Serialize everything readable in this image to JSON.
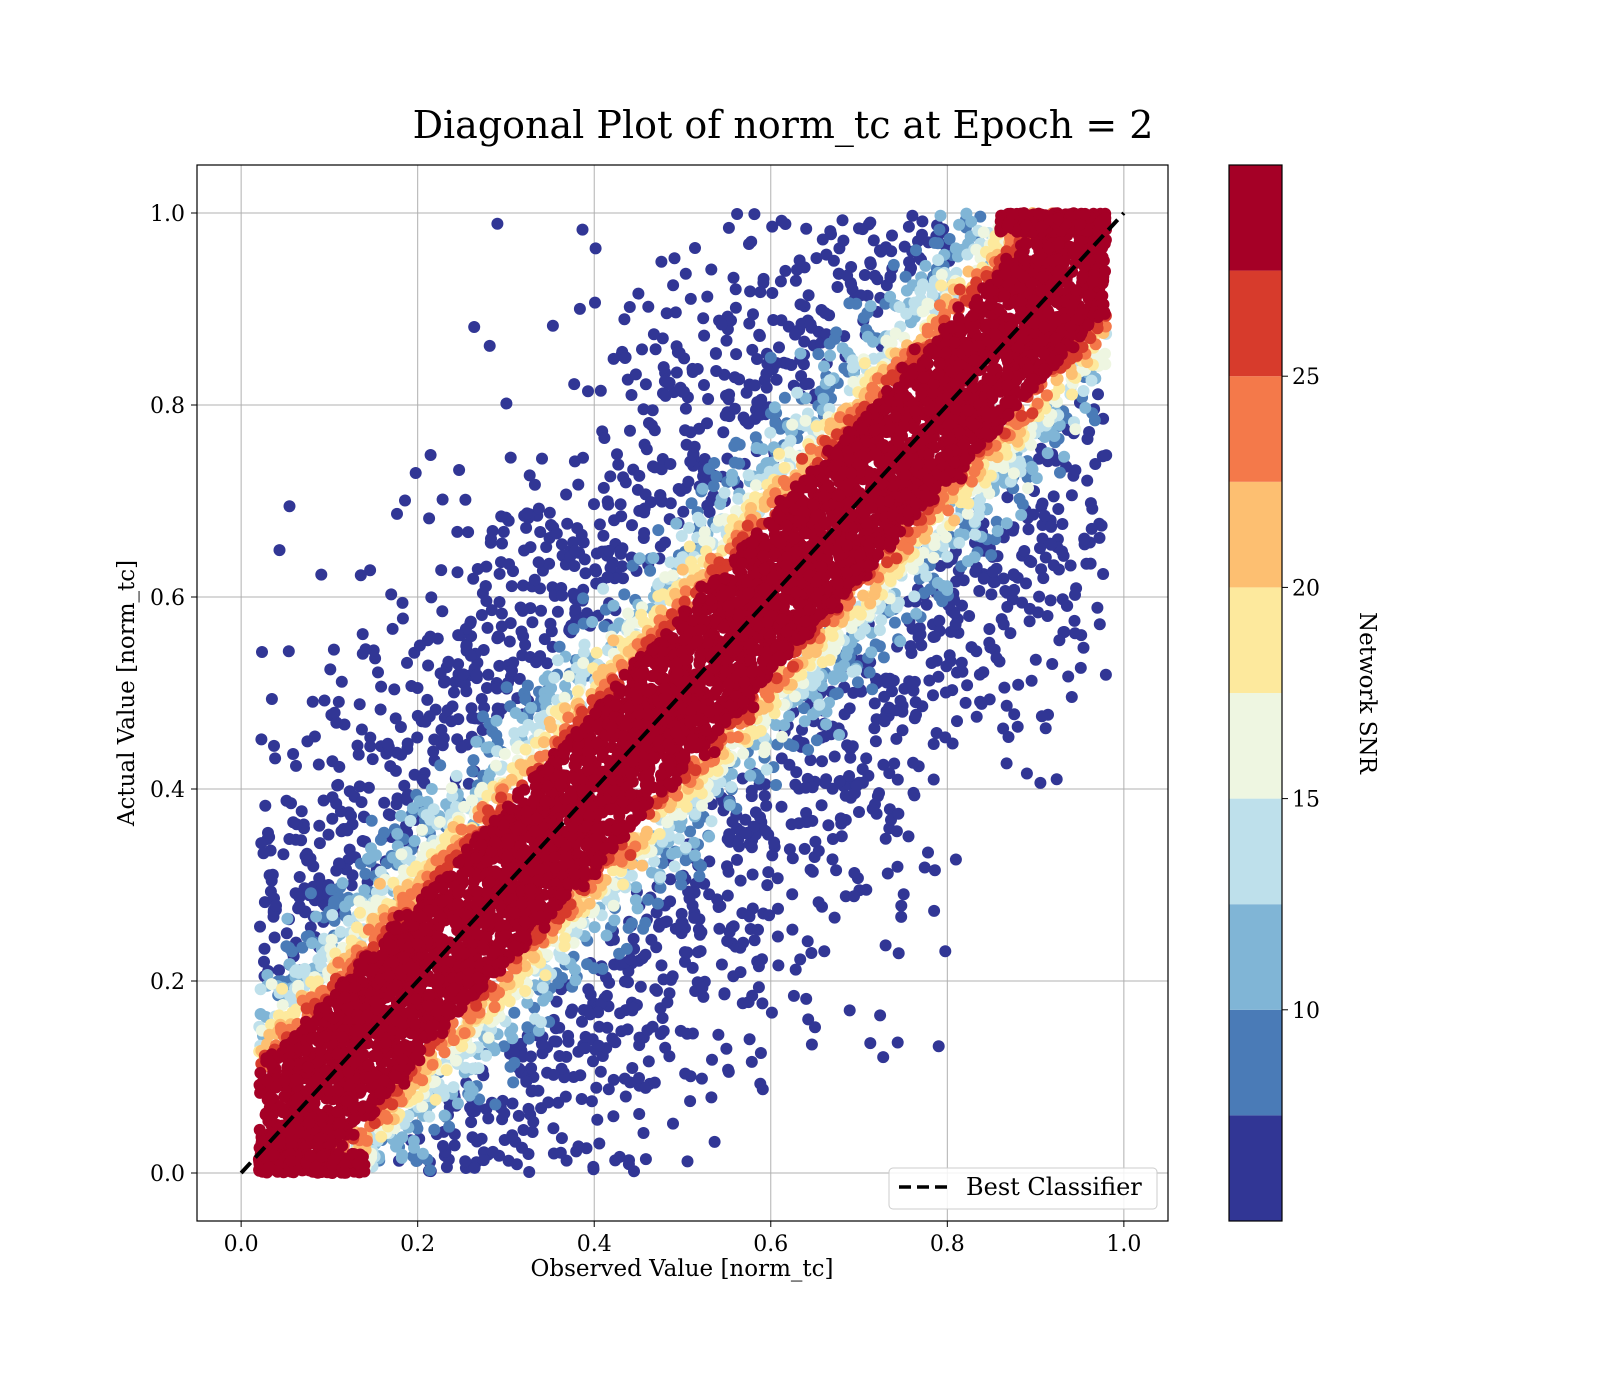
{
  "chart_data": {
    "type": "scatter",
    "title": "Diagonal Plot of norm_tc at Epoch = 2",
    "xlabel": "Observed Value [norm_tc]",
    "ylabel": "Actual Value [norm_tc]",
    "xlim": [
      -0.05,
      1.05
    ],
    "ylim": [
      -0.05,
      1.05
    ],
    "x_ticks": [
      0.0,
      0.2,
      0.4,
      0.6,
      0.8,
      1.0
    ],
    "x_tick_labels": [
      "0.0",
      "0.2",
      "0.4",
      "0.6",
      "0.8",
      "1.0"
    ],
    "y_ticks": [
      0.0,
      0.2,
      0.4,
      0.6,
      0.8,
      1.0
    ],
    "y_tick_labels": [
      "0.0",
      "0.2",
      "0.4",
      "0.6",
      "0.8",
      "1.0"
    ],
    "grid": true,
    "legend": {
      "location": "lower-right",
      "entries": [
        {
          "label": "Best Classifier",
          "style": "dashed",
          "color": "#000000"
        }
      ]
    },
    "reference_line": {
      "label": "Best Classifier",
      "x": [
        0.0,
        1.0
      ],
      "y": [
        0.0,
        1.0
      ]
    },
    "colorbar": {
      "label": "Network SNR",
      "range": [
        5,
        30
      ],
      "ticks": [
        10,
        15,
        20,
        25
      ],
      "tick_labels": [
        "10",
        "15",
        "20",
        "25"
      ],
      "bins": [
        {
          "from": 5.0,
          "to": 7.5,
          "color": "#313695"
        },
        {
          "from": 7.5,
          "to": 10.0,
          "color": "#4a7bb7"
        },
        {
          "from": 10.0,
          "to": 12.5,
          "color": "#80b5d6"
        },
        {
          "from": 12.5,
          "to": 15.0,
          "color": "#bee0eb"
        },
        {
          "from": 15.0,
          "to": 17.5,
          "color": "#eef6e1"
        },
        {
          "from": 17.5,
          "to": 20.0,
          "color": "#fde99d"
        },
        {
          "from": 20.0,
          "to": 22.5,
          "color": "#fdbf71"
        },
        {
          "from": 22.5,
          "to": 25.0,
          "color": "#f4794a"
        },
        {
          "from": 25.0,
          "to": 27.5,
          "color": "#d73b2c"
        },
        {
          "from": 27.5,
          "to": 30.0,
          "color": "#a50026"
        }
      ]
    },
    "scatter_description": {
      "points_approx": 60000,
      "high_snr_band_halfwidth": 0.08,
      "x_range": [
        0.02,
        0.98
      ],
      "y_range": [
        0.0,
        1.0
      ],
      "snr_decreases_with_distance_from_diagonal": true
    }
  }
}
